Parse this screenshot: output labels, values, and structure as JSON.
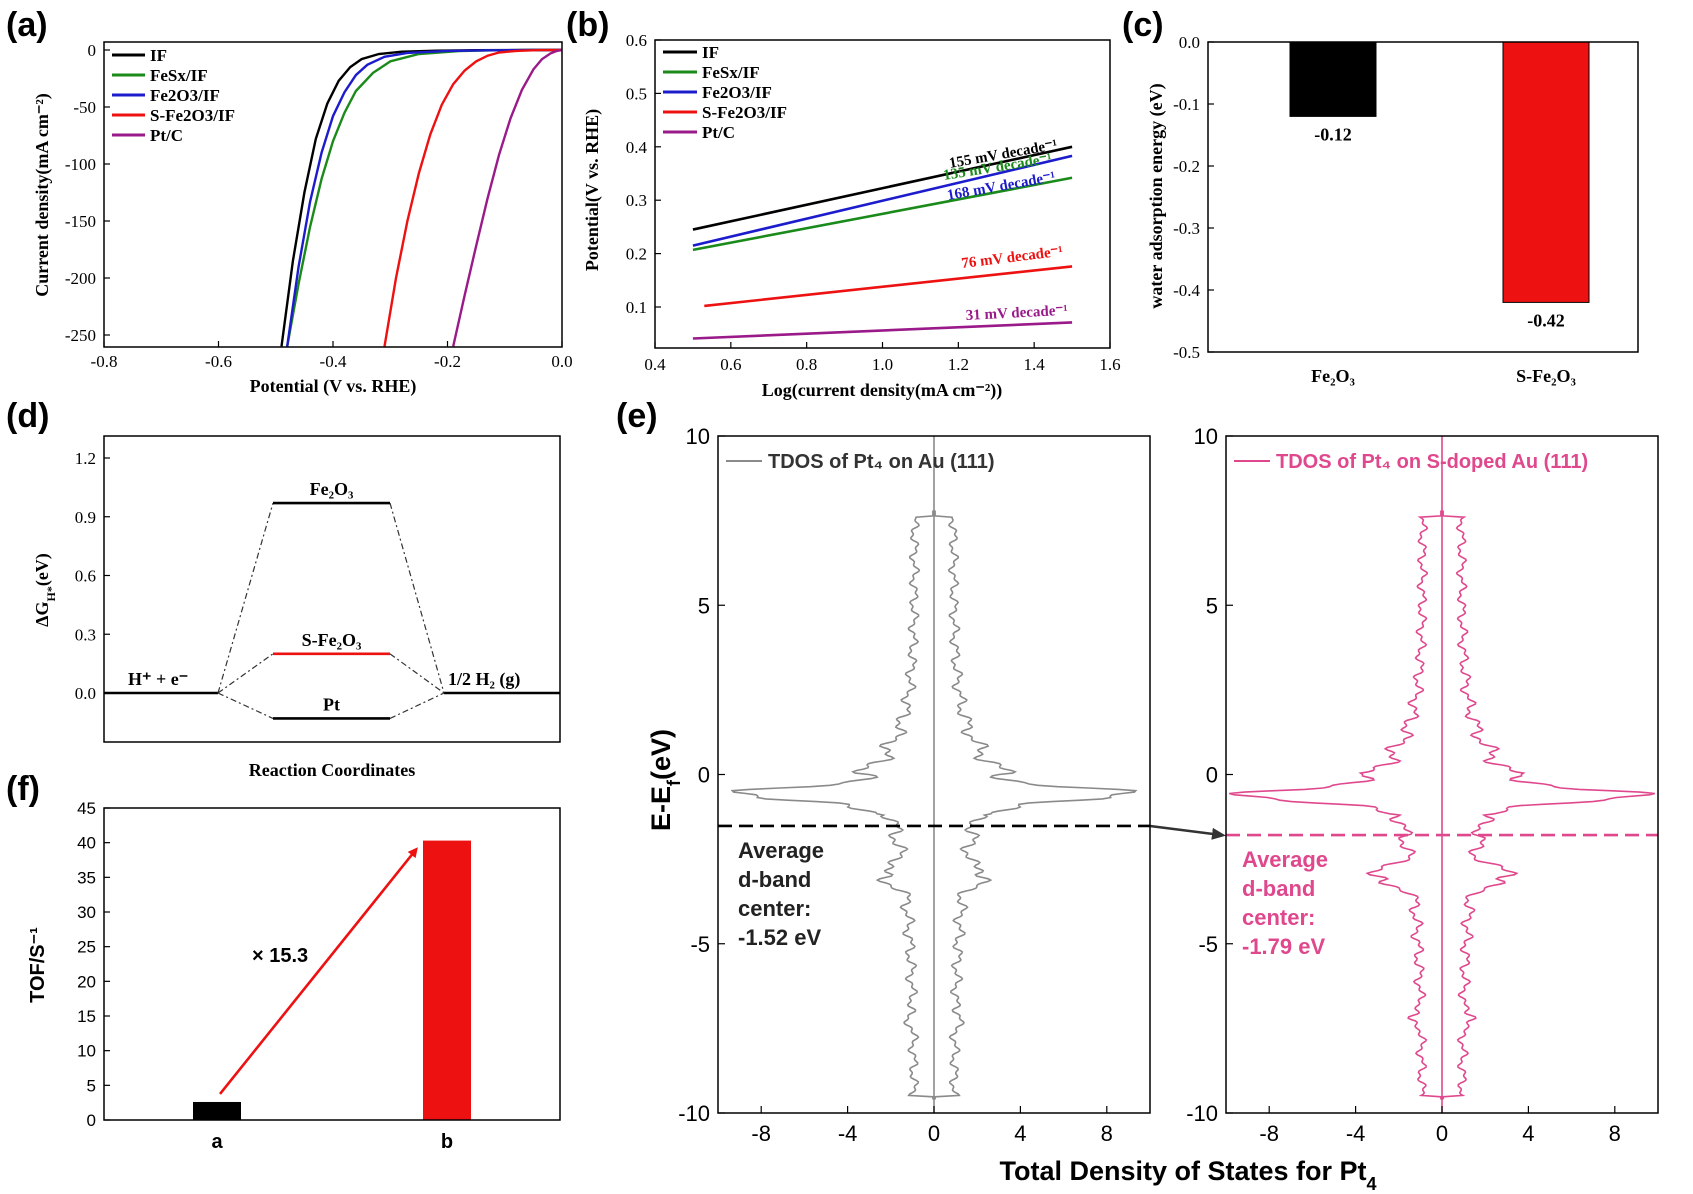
{
  "panels": {
    "a": {
      "letter": "(a)",
      "xlabel": "Potential (V vs. RHE)",
      "ylabel": "Current density(mA cm⁻²)",
      "xticks": [
        "-0.8",
        "-0.6",
        "-0.4",
        "-0.2",
        "0.0"
      ],
      "yticks": [
        "0",
        "-50",
        "-100",
        "-150",
        "-200",
        "-250"
      ]
    },
    "b": {
      "letter": "(b)",
      "xlabel": "Log(current density(mA cm⁻²))",
      "ylabel": "Potential(V vs. RHE)",
      "xticks": [
        "0.4",
        "0.6",
        "0.8",
        "1.0",
        "1.2",
        "1.4",
        "1.6"
      ],
      "yticks": [
        "0.1",
        "0.2",
        "0.3",
        "0.4",
        "0.5",
        "0.6"
      ]
    },
    "c": {
      "letter": "(c)",
      "ylabel": "water adsorption energy (eV)",
      "yticks": [
        "0.0",
        "-0.1",
        "-0.2",
        "-0.3",
        "-0.4",
        "-0.5"
      ]
    },
    "d": {
      "letter": "(d)",
      "xlabel": "Reaction Coordinates",
      "ylabel": "ΔG",
      "ylabel_sub": "H*",
      "ylabel_tail": "(eV)",
      "yticks": [
        "1.2",
        "0.9",
        "0.6",
        "0.3",
        "0.0"
      ],
      "left_state": "H⁺ + e⁻",
      "right_state": "1/2 H₂ (g)"
    },
    "e": {
      "letter": "(e)",
      "xlabel": "Total Density of States for Pt",
      "xlabel_sub": "4",
      "ylabel": "E-E",
      "ylabel_sub": "f",
      "ylabel_tail": "(eV)",
      "yticks": [
        "10",
        "5",
        "0",
        "-5",
        "-10"
      ],
      "xticks": [
        "-8",
        "-4",
        "0",
        "4",
        "8"
      ],
      "left_legend": "TDOS of Pt₄ on Au (111)",
      "right_legend": "TDOS of Pt₄ on S-doped Au (111)",
      "left_dband": [
        "Average",
        "d-band",
        "center:",
        "-1.52 eV"
      ],
      "right_dband": [
        "Average",
        "d-band",
        "center:",
        "-1.79 eV"
      ]
    },
    "f": {
      "letter": "(f)",
      "ylabel": "TOF/S⁻¹",
      "yticks": [
        "45",
        "40",
        "35",
        "30",
        "25",
        "20",
        "15",
        "10",
        "5",
        "0"
      ],
      "arrow_label": "× 15.3"
    }
  },
  "colors": {
    "black": "#000000",
    "green": "#1a8a1a",
    "blue": "#1c1ccc",
    "red": "#ee1111",
    "purple": "#9a1a8a",
    "gray": "#8a8a8a",
    "pink": "#e0488e"
  },
  "chart_data": [
    {
      "id": "a",
      "type": "line",
      "xlabel": "Potential (V vs. RHE)",
      "ylabel": "Current density(mA cm⁻²)",
      "xlim": [
        -0.8,
        0.0
      ],
      "ylim": [
        -260,
        5
      ],
      "series": [
        {
          "name": "IF",
          "x": [
            -0.49,
            -0.47,
            -0.45,
            -0.43,
            -0.41,
            -0.39,
            -0.37,
            -0.35,
            -0.32,
            -0.28,
            -0.22,
            -0.15,
            -0.05,
            0.0
          ],
          "y": [
            -260,
            -185,
            -125,
            -78,
            -47,
            -27,
            -15,
            -8,
            -3.5,
            -1.5,
            -0.6,
            -0.2,
            0,
            0
          ]
        },
        {
          "name": "FeSx/IF",
          "x": [
            -0.48,
            -0.46,
            -0.44,
            -0.42,
            -0.4,
            -0.38,
            -0.36,
            -0.33,
            -0.3,
            -0.25,
            -0.18,
            -0.12,
            -0.05,
            0.0
          ],
          "y": [
            -260,
            -205,
            -155,
            -113,
            -80,
            -55,
            -36,
            -20,
            -10,
            -3.5,
            -1.0,
            -0.3,
            0,
            0
          ]
        },
        {
          "name": "Fe2O3/IF",
          "x": [
            -0.48,
            -0.46,
            -0.44,
            -0.42,
            -0.4,
            -0.38,
            -0.36,
            -0.34,
            -0.31,
            -0.27,
            -0.2,
            -0.13,
            -0.05,
            0.0
          ],
          "y": [
            -260,
            -190,
            -133,
            -90,
            -58,
            -37,
            -22,
            -13,
            -6,
            -2.5,
            -0.8,
            -0.3,
            0,
            0
          ]
        },
        {
          "name": "S-Fe2O3/IF",
          "x": [
            -0.31,
            -0.29,
            -0.27,
            -0.25,
            -0.23,
            -0.21,
            -0.19,
            -0.17,
            -0.15,
            -0.13,
            -0.11,
            -0.08,
            -0.04,
            0.0
          ],
          "y": [
            -260,
            -200,
            -150,
            -108,
            -74,
            -48,
            -30,
            -18,
            -10,
            -5,
            -2.2,
            -0.8,
            -0.1,
            0
          ]
        },
        {
          "name": "Pt/C",
          "x": [
            -0.19,
            -0.17,
            -0.15,
            -0.13,
            -0.11,
            -0.09,
            -0.07,
            -0.05,
            -0.035,
            -0.02,
            -0.01,
            0.0
          ],
          "y": [
            -260,
            -215,
            -172,
            -130,
            -92,
            -60,
            -35,
            -17,
            -8,
            -3,
            -1,
            0
          ]
        }
      ]
    },
    {
      "id": "b",
      "type": "line",
      "xlabel": "Log(current density(mA cm⁻²))",
      "ylabel": "Potential(V vs. RHE)",
      "xlim": [
        0.4,
        1.6
      ],
      "ylim": [
        0.03,
        0.6
      ],
      "series": [
        {
          "name": "IF",
          "x": [
            0.5,
            1.5
          ],
          "y": [
            0.245,
            0.4
          ],
          "annotation": "155 mV decade⁻¹"
        },
        {
          "name": "FeSx/IF",
          "x": [
            0.5,
            1.5
          ],
          "y": [
            0.207,
            0.342
          ],
          "annotation": "135 mV decade⁻¹"
        },
        {
          "name": "Fe2O3/IF",
          "x": [
            0.5,
            1.5
          ],
          "y": [
            0.215,
            0.383
          ],
          "annotation": "168 mV decade⁻¹"
        },
        {
          "name": "S-Fe2O3/IF",
          "x": [
            0.53,
            1.5
          ],
          "y": [
            0.102,
            0.176
          ],
          "annotation": "76 mV decade⁻¹"
        },
        {
          "name": "Pt/C",
          "x": [
            0.5,
            1.5
          ],
          "y": [
            0.041,
            0.071
          ],
          "annotation": "31 mV decade⁻¹"
        }
      ]
    },
    {
      "id": "c",
      "type": "bar",
      "ylabel": "water adsorption energy (eV)",
      "ylim": [
        -0.5,
        0.0
      ],
      "categories": [
        "Fe₂O₃",
        "S-Fe₂O₃"
      ],
      "values": [
        -0.12,
        -0.42
      ],
      "value_labels": [
        "-0.12",
        "-0.42"
      ]
    },
    {
      "id": "d",
      "type": "line",
      "xlabel": "Reaction Coordinates",
      "ylim": [
        -0.25,
        1.3
      ],
      "series": [
        {
          "name": "Fe₂O₃",
          "value": 0.97
        },
        {
          "name": "S-Fe₂O₃",
          "value": 0.2
        },
        {
          "name": "Pt",
          "value": -0.13
        }
      ],
      "ends": [
        0.0,
        0.0
      ]
    },
    {
      "id": "e",
      "type": "line",
      "xlabel": "Total Density of States for Pt4",
      "ylim": [
        -10,
        10
      ],
      "xlim": [
        -10,
        10
      ],
      "series": [
        {
          "name": "TDOS of Pt₄ on Au (111)",
          "d_band_center": -1.52
        },
        {
          "name": "TDOS of Pt₄ on S-doped Au (111)",
          "d_band_center": -1.79
        }
      ]
    },
    {
      "id": "f",
      "type": "bar",
      "ylabel": "TOF/S⁻¹",
      "ylim": [
        0,
        45
      ],
      "categories": [
        "a",
        "b"
      ],
      "values": [
        2.6,
        40.3
      ],
      "annotation": "× 15.3"
    }
  ]
}
